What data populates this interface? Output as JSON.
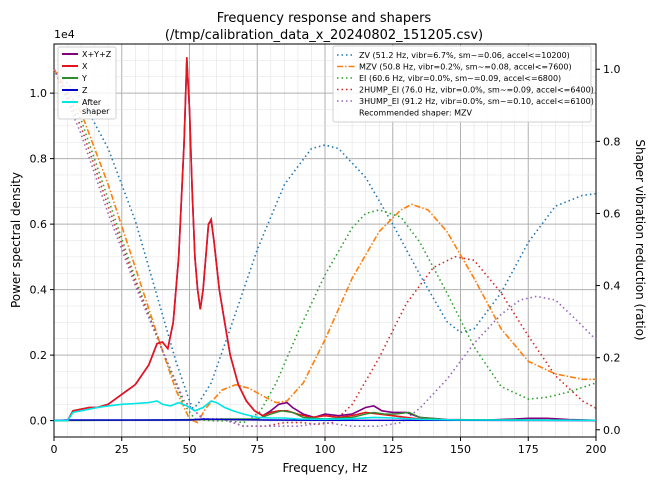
{
  "chart_data": {
    "type": "line",
    "title": "Frequency response and shapers",
    "subtitle": "(/tmp/calibration_data_x_20240802_151205.csv)",
    "xlabel": "Frequency, Hz",
    "ylabel_left": "Power spectral density",
    "ylabel_right": "Shaper vibration reduction (ratio)",
    "y_multiplier": "1e4",
    "xlim": [
      0,
      200
    ],
    "ylim_left": [
      -0.05,
      1.15
    ],
    "ylim_right": [
      -0.02,
      1.07
    ],
    "grid": true,
    "x_ticks": [
      "0",
      "25",
      "50",
      "75",
      "100",
      "125",
      "150",
      "175",
      "200"
    ],
    "y_ticks_left": [
      "0.0",
      "0.2",
      "0.4",
      "0.6",
      "0.8",
      "1.0"
    ],
    "y_ticks_right": [
      "0.0",
      "0.2",
      "0.4",
      "0.6",
      "0.8",
      "1.0"
    ],
    "psd_series": [
      {
        "name": "X+Y+Z",
        "color": "#800080",
        "width": 1.6,
        "dash": "",
        "points": [
          [
            0,
            0
          ],
          [
            5,
            0
          ],
          [
            7,
            0.03
          ],
          [
            10,
            0.035
          ],
          [
            13,
            0.04
          ],
          [
            16,
            0.04
          ],
          [
            20,
            0.05
          ],
          [
            25,
            0.08
          ],
          [
            30,
            0.11
          ],
          [
            35,
            0.17
          ],
          [
            38,
            0.235
          ],
          [
            40,
            0.24
          ],
          [
            42,
            0.22
          ],
          [
            44,
            0.3
          ],
          [
            46,
            0.5
          ],
          [
            48,
            0.85
          ],
          [
            49,
            1.1
          ],
          [
            50,
            0.95
          ],
          [
            51,
            0.7
          ],
          [
            52,
            0.5
          ],
          [
            53,
            0.4
          ],
          [
            54,
            0.34
          ],
          [
            55,
            0.4
          ],
          [
            56,
            0.5
          ],
          [
            57,
            0.6
          ],
          [
            58,
            0.61
          ],
          [
            59,
            0.55
          ],
          [
            61,
            0.4
          ],
          [
            63,
            0.3
          ],
          [
            65,
            0.2
          ],
          [
            68,
            0.11
          ],
          [
            71,
            0.06
          ],
          [
            74,
            0.03
          ],
          [
            77,
            0.015
          ],
          [
            80,
            0.03
          ],
          [
            83,
            0.05
          ],
          [
            86,
            0.055
          ],
          [
            88,
            0.04
          ],
          [
            92,
            0.02
          ],
          [
            96,
            0.01
          ],
          [
            100,
            0.02
          ],
          [
            105,
            0.015
          ],
          [
            110,
            0.02
          ],
          [
            115,
            0.04
          ],
          [
            118,
            0.045
          ],
          [
            121,
            0.03
          ],
          [
            125,
            0.025
          ],
          [
            130,
            0.025
          ],
          [
            135,
            0.01
          ],
          [
            145,
            0.003
          ],
          [
            160,
            0.002
          ],
          [
            170,
            0.005
          ],
          [
            175,
            0.007
          ],
          [
            182,
            0.007
          ],
          [
            190,
            0.003
          ],
          [
            200,
            0.001
          ]
        ]
      },
      {
        "name": "X",
        "color": "#e8141c",
        "width": 1.6,
        "dash": "",
        "points": [
          [
            0,
            0
          ],
          [
            5,
            0
          ],
          [
            7,
            0.03
          ],
          [
            10,
            0.035
          ],
          [
            13,
            0.04
          ],
          [
            16,
            0.04
          ],
          [
            20,
            0.05
          ],
          [
            25,
            0.08
          ],
          [
            30,
            0.11
          ],
          [
            35,
            0.17
          ],
          [
            38,
            0.235
          ],
          [
            40,
            0.24
          ],
          [
            42,
            0.22
          ],
          [
            44,
            0.3
          ],
          [
            46,
            0.5
          ],
          [
            48,
            0.85
          ],
          [
            49,
            1.11
          ],
          [
            50,
            0.95
          ],
          [
            51,
            0.7
          ],
          [
            52,
            0.5
          ],
          [
            53,
            0.4
          ],
          [
            54,
            0.34
          ],
          [
            55,
            0.4
          ],
          [
            56,
            0.5
          ],
          [
            57,
            0.6
          ],
          [
            58,
            0.615
          ],
          [
            59,
            0.55
          ],
          [
            61,
            0.4
          ],
          [
            63,
            0.3
          ],
          [
            65,
            0.2
          ],
          [
            68,
            0.11
          ],
          [
            71,
            0.06
          ],
          [
            74,
            0.03
          ],
          [
            77,
            0.015
          ],
          [
            80,
            0.025
          ],
          [
            83,
            0.03
          ],
          [
            86,
            0.03
          ],
          [
            90,
            0.02
          ],
          [
            95,
            0.01
          ],
          [
            100,
            0.015
          ],
          [
            105,
            0.01
          ],
          [
            110,
            0.015
          ],
          [
            115,
            0.025
          ],
          [
            120,
            0.02
          ],
          [
            125,
            0.015
          ],
          [
            130,
            0.01
          ],
          [
            135,
            0.005
          ],
          [
            145,
            0.002
          ],
          [
            200,
            0.001
          ]
        ]
      },
      {
        "name": "Y",
        "color": "#2e8b2e",
        "width": 1.4,
        "dash": "",
        "points": [
          [
            0,
            0
          ],
          [
            20,
            0.001
          ],
          [
            40,
            0.002
          ],
          [
            55,
            0.004
          ],
          [
            65,
            0.005
          ],
          [
            75,
            0.005
          ],
          [
            80,
            0.02
          ],
          [
            84,
            0.03
          ],
          [
            88,
            0.025
          ],
          [
            92,
            0.01
          ],
          [
            100,
            0.005
          ],
          [
            110,
            0.01
          ],
          [
            115,
            0.02
          ],
          [
            118,
            0.025
          ],
          [
            122,
            0.02
          ],
          [
            126,
            0.02
          ],
          [
            131,
            0.025
          ],
          [
            135,
            0.01
          ],
          [
            145,
            0.003
          ],
          [
            200,
            0.001
          ]
        ]
      },
      {
        "name": "Z",
        "color": "#0000cc",
        "width": 1.4,
        "dash": "",
        "points": [
          [
            0,
            0
          ],
          [
            5,
            0.002
          ],
          [
            50,
            0.002
          ],
          [
            55,
            0.005
          ],
          [
            60,
            0.004
          ],
          [
            80,
            0.002
          ],
          [
            100,
            0.001
          ],
          [
            150,
            0.001
          ],
          [
            200,
            0
          ]
        ]
      },
      {
        "name": "After\nshaper",
        "color": "#00e5e5",
        "width": 1.6,
        "dash": "",
        "points": [
          [
            0,
            0
          ],
          [
            5,
            0
          ],
          [
            7,
            0.025
          ],
          [
            10,
            0.03
          ],
          [
            13,
            0.035
          ],
          [
            16,
            0.04
          ],
          [
            20,
            0.045
          ],
          [
            25,
            0.05
          ],
          [
            30,
            0.052
          ],
          [
            35,
            0.055
          ],
          [
            38,
            0.06
          ],
          [
            40,
            0.05
          ],
          [
            43,
            0.045
          ],
          [
            46,
            0.055
          ],
          [
            49,
            0.045
          ],
          [
            52,
            0.03
          ],
          [
            55,
            0.04
          ],
          [
            58,
            0.06
          ],
          [
            60,
            0.055
          ],
          [
            63,
            0.04
          ],
          [
            66,
            0.03
          ],
          [
            70,
            0.02
          ],
          [
            75,
            0.01
          ],
          [
            80,
            0.008
          ],
          [
            85,
            0.008
          ],
          [
            90,
            0.005
          ],
          [
            100,
            0.004
          ],
          [
            110,
            0.006
          ],
          [
            118,
            0.01
          ],
          [
            125,
            0.008
          ],
          [
            135,
            0.004
          ],
          [
            150,
            0.002
          ],
          [
            200,
            0.001
          ]
        ]
      }
    ],
    "shaper_series": [
      {
        "name": "ZV (51.2 Hz, vibr=6.7%, sm~=0.06, accel<=10200)",
        "color": "#1f77b4",
        "dash": "1.5,3",
        "width": 1.6,
        "points": [
          [
            0,
            1.0
          ],
          [
            10,
            0.92
          ],
          [
            20,
            0.78
          ],
          [
            30,
            0.58
          ],
          [
            40,
            0.32
          ],
          [
            45,
            0.19
          ],
          [
            50,
            0.08
          ],
          [
            51.2,
            0.06
          ],
          [
            53,
            0.07
          ],
          [
            58,
            0.13
          ],
          [
            65,
            0.28
          ],
          [
            75,
            0.5
          ],
          [
            85,
            0.68
          ],
          [
            95,
            0.78
          ],
          [
            100,
            0.79
          ],
          [
            105,
            0.78
          ],
          [
            115,
            0.7
          ],
          [
            125,
            0.57
          ],
          [
            135,
            0.43
          ],
          [
            145,
            0.3
          ],
          [
            150,
            0.27
          ],
          [
            155,
            0.28
          ],
          [
            165,
            0.38
          ],
          [
            175,
            0.52
          ],
          [
            185,
            0.62
          ],
          [
            195,
            0.65
          ],
          [
            200,
            0.655
          ]
        ]
      },
      {
        "name": "MZV (50.8 Hz, vibr=0.2%, sm~=0.08, accel<=7600)",
        "color": "#ff7f0e",
        "dash": "6,2,1.5,2",
        "width": 1.6,
        "points": [
          [
            0,
            1.0
          ],
          [
            10,
            0.88
          ],
          [
            20,
            0.68
          ],
          [
            30,
            0.45
          ],
          [
            40,
            0.22
          ],
          [
            45,
            0.11
          ],
          [
            50,
            0.03
          ],
          [
            53,
            0.02
          ],
          [
            56,
            0.06
          ],
          [
            62,
            0.11
          ],
          [
            67,
            0.125
          ],
          [
            72,
            0.115
          ],
          [
            78,
            0.09
          ],
          [
            82,
            0.075
          ],
          [
            86,
            0.08
          ],
          [
            92,
            0.13
          ],
          [
            100,
            0.25
          ],
          [
            110,
            0.42
          ],
          [
            120,
            0.55
          ],
          [
            128,
            0.61
          ],
          [
            132,
            0.625
          ],
          [
            138,
            0.61
          ],
          [
            145,
            0.55
          ],
          [
            155,
            0.42
          ],
          [
            165,
            0.28
          ],
          [
            175,
            0.19
          ],
          [
            185,
            0.155
          ],
          [
            195,
            0.14
          ],
          [
            200,
            0.14
          ]
        ]
      },
      {
        "name": "EI (60.6 Hz, vibr=0.0%, sm~=0.09, accel<=6800)",
        "color": "#2ca02c",
        "dash": "1.5,3",
        "width": 1.6,
        "points": [
          [
            0,
            1.0
          ],
          [
            10,
            0.86
          ],
          [
            20,
            0.64
          ],
          [
            30,
            0.42
          ],
          [
            40,
            0.22
          ],
          [
            48,
            0.07
          ],
          [
            52,
            0.03
          ],
          [
            58,
            0.025
          ],
          [
            64,
            0.025
          ],
          [
            70,
            0.02
          ],
          [
            76,
            0.05
          ],
          [
            82,
            0.13
          ],
          [
            90,
            0.27
          ],
          [
            100,
            0.43
          ],
          [
            110,
            0.56
          ],
          [
            115,
            0.6
          ],
          [
            120,
            0.61
          ],
          [
            128,
            0.59
          ],
          [
            135,
            0.52
          ],
          [
            145,
            0.38
          ],
          [
            155,
            0.23
          ],
          [
            165,
            0.12
          ],
          [
            175,
            0.085
          ],
          [
            182,
            0.09
          ],
          [
            190,
            0.105
          ],
          [
            200,
            0.13
          ]
        ]
      },
      {
        "name": "2HUMP_EI (76.0 Hz, vibr=0.0%, sm~=0.09, accel<=6400)",
        "color": "#d62728",
        "dash": "1.5,3",
        "width": 1.6,
        "points": [
          [
            0,
            1.0
          ],
          [
            10,
            0.84
          ],
          [
            20,
            0.62
          ],
          [
            30,
            0.41
          ],
          [
            40,
            0.22
          ],
          [
            48,
            0.08
          ],
          [
            55,
            0.03
          ],
          [
            62,
            0.03
          ],
          [
            70,
            0.01
          ],
          [
            78,
            0.01
          ],
          [
            85,
            0.02
          ],
          [
            92,
            0.02
          ],
          [
            97,
            0.015
          ],
          [
            103,
            0.02
          ],
          [
            110,
            0.07
          ],
          [
            120,
            0.2
          ],
          [
            130,
            0.35
          ],
          [
            140,
            0.45
          ],
          [
            148,
            0.48
          ],
          [
            155,
            0.47
          ],
          [
            165,
            0.38
          ],
          [
            175,
            0.26
          ],
          [
            185,
            0.15
          ],
          [
            195,
            0.08
          ],
          [
            200,
            0.06
          ]
        ]
      },
      {
        "name": "3HUMP_EI (91.2 Hz, vibr=0.0%, sm~=0.10, accel<=6100)",
        "color": "#9467bd",
        "dash": "1.5,3",
        "width": 1.6,
        "points": [
          [
            0,
            1.0
          ],
          [
            10,
            0.82
          ],
          [
            20,
            0.6
          ],
          [
            30,
            0.4
          ],
          [
            40,
            0.22
          ],
          [
            48,
            0.08
          ],
          [
            55,
            0.03
          ],
          [
            62,
            0.03
          ],
          [
            70,
            0.01
          ],
          [
            80,
            0.01
          ],
          [
            90,
            0.01
          ],
          [
            100,
            0.02
          ],
          [
            110,
            0.01
          ],
          [
            120,
            0.01
          ],
          [
            128,
            0.02
          ],
          [
            135,
            0.06
          ],
          [
            145,
            0.14
          ],
          [
            155,
            0.24
          ],
          [
            165,
            0.32
          ],
          [
            172,
            0.36
          ],
          [
            178,
            0.37
          ],
          [
            185,
            0.36
          ],
          [
            192,
            0.31
          ],
          [
            200,
            0.25
          ]
        ]
      }
    ],
    "recommendation": "Recommended shaper: MZV"
  }
}
